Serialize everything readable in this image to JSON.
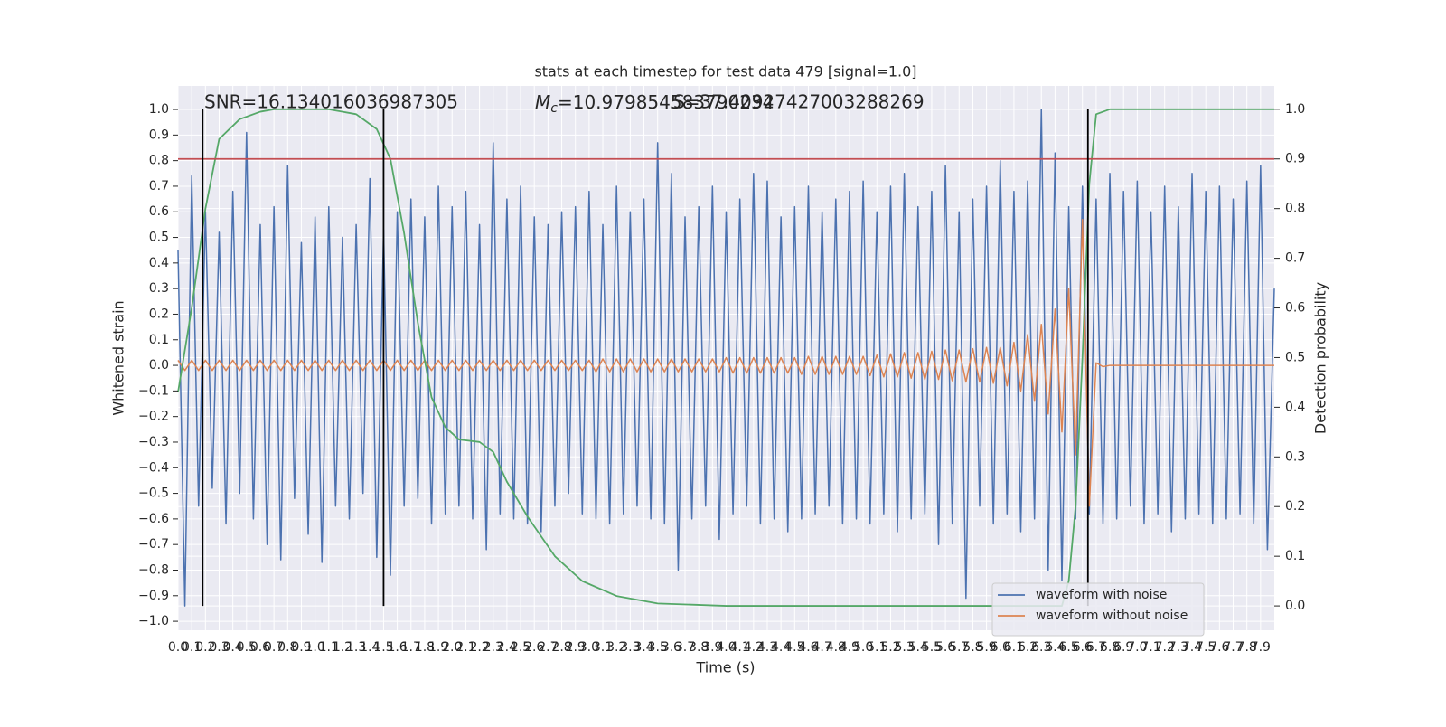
{
  "chart_data": {
    "type": "line",
    "title": "stats at each timestep for test data 479 [signal=1.0]",
    "x_label": "Time (s)",
    "y_label": "Whitened strain",
    "y2_label": "Detection probability",
    "annotations": {
      "snr": "SNR=16.134016036987305",
      "mc_symbol": "M",
      "mc_subscript": "c",
      "mc_value": "=10.979854583790234",
      "s": "S=37.40927427003288269"
    },
    "xlim": [
      0,
      8
    ],
    "ylim": [
      -1.035,
      1.092
    ],
    "y2lim": [
      -0.049,
      1.047
    ],
    "xticks": [
      {
        "value": 0,
        "label": "0.0"
      },
      0.1,
      0.2,
      0.3,
      0.4,
      0.5,
      0.6,
      0.7,
      0.8,
      0.9,
      {
        "value": 1,
        "label": "1.0"
      },
      1.1,
      1.2,
      1.3,
      1.4,
      1.5,
      1.6,
      1.7,
      1.8,
      1.9,
      {
        "value": 2,
        "label": "2.0"
      },
      2.1,
      2.2,
      2.3,
      2.4,
      2.5,
      2.6,
      2.7,
      2.8,
      2.9,
      {
        "value": 3,
        "label": "3.0"
      },
      3.1,
      3.2,
      3.3,
      3.4,
      3.5,
      3.6,
      3.7,
      3.8,
      3.9,
      {
        "value": 4,
        "label": "4.0"
      },
      4.1,
      4.2,
      4.3,
      4.4,
      4.5,
      4.6,
      4.7,
      4.8,
      4.9,
      {
        "value": 5,
        "label": "5.0"
      },
      5.1,
      5.2,
      5.3,
      5.4,
      5.5,
      5.6,
      5.7,
      5.8,
      5.9,
      {
        "value": 6,
        "label": "6.0"
      },
      6.1,
      6.2,
      6.3,
      6.4,
      6.5,
      6.6,
      6.7,
      6.8,
      6.9,
      {
        "value": 7,
        "label": "7.0"
      },
      7.1,
      7.2,
      7.3,
      7.4,
      7.5,
      7.6,
      7.7,
      7.8,
      7.9
    ],
    "yticks": [
      {
        "value": -1,
        "label": "−1.0"
      },
      {
        "value": -0.9,
        "label": "−0.9"
      },
      {
        "value": -0.8,
        "label": "−0.8"
      },
      {
        "value": -0.7,
        "label": "−0.7"
      },
      {
        "value": -0.6,
        "label": "−0.6"
      },
      {
        "value": -0.5,
        "label": "−0.5"
      },
      {
        "value": -0.4,
        "label": "−0.4"
      },
      {
        "value": -0.3,
        "label": "−0.3"
      },
      {
        "value": -0.2,
        "label": "−0.2"
      },
      {
        "value": -0.1,
        "label": "−0.1"
      },
      {
        "value": 0,
        "label": "0.0"
      },
      0.1,
      0.2,
      0.3,
      0.4,
      0.5,
      0.6,
      0.7,
      0.8,
      0.9,
      {
        "value": 1,
        "label": "1.0"
      }
    ],
    "y2ticks": [
      {
        "value": 0,
        "label": "0.0"
      },
      0.1,
      0.2,
      0.3,
      0.4,
      0.5,
      0.6,
      0.7,
      0.8,
      0.9,
      {
        "value": 1,
        "label": "1.0"
      }
    ],
    "grid": true,
    "x": [
      0,
      0.05,
      0.1,
      0.15,
      0.2,
      0.25,
      0.3,
      0.35,
      0.4,
      0.45,
      0.5,
      0.55,
      0.6,
      0.65,
      0.7,
      0.75,
      0.8,
      0.85,
      0.9,
      0.95,
      1,
      1.05,
      1.1,
      1.15,
      1.2,
      1.25,
      1.3,
      1.35,
      1.4,
      1.45,
      1.5,
      1.55,
      1.6,
      1.65,
      1.7,
      1.75,
      1.8,
      1.85,
      1.9,
      1.95,
      2,
      2.05,
      2.1,
      2.15,
      2.2,
      2.25,
      2.3,
      2.35,
      2.4,
      2.45,
      2.5,
      2.55,
      2.6,
      2.65,
      2.7,
      2.75,
      2.8,
      2.85,
      2.9,
      2.95,
      3,
      3.05,
      3.1,
      3.15,
      3.2,
      3.25,
      3.3,
      3.35,
      3.4,
      3.45,
      3.5,
      3.55,
      3.6,
      3.65,
      3.7,
      3.75,
      3.8,
      3.85,
      3.9,
      3.95,
      4,
      4.05,
      4.1,
      4.15,
      4.2,
      4.25,
      4.3,
      4.35,
      4.4,
      4.45,
      4.5,
      4.55,
      4.6,
      4.65,
      4.7,
      4.75,
      4.8,
      4.85,
      4.9,
      4.95,
      5,
      5.05,
      5.1,
      5.15,
      5.2,
      5.25,
      5.3,
      5.35,
      5.4,
      5.45,
      5.5,
      5.55,
      5.6,
      5.65,
      5.7,
      5.75,
      5.8,
      5.85,
      5.9,
      5.95,
      6,
      6.05,
      6.1,
      6.15,
      6.2,
      6.25,
      6.3,
      6.35,
      6.4,
      6.45,
      6.5,
      6.55,
      6.6,
      6.65,
      6.7,
      6.75,
      6.8,
      6.85,
      6.9,
      6.95,
      7,
      7.05,
      7.1,
      7.15,
      7.2,
      7.25,
      7.3,
      7.35,
      7.4,
      7.45,
      7.5,
      7.55,
      7.6,
      7.65,
      7.7,
      7.75,
      7.8,
      7.85,
      7.9,
      7.95,
      8
    ],
    "series": [
      {
        "name": "waveform with noise",
        "color": "#4c72b0",
        "values": [
          0.45,
          -0.94,
          0.74,
          -0.55,
          0.6,
          -0.48,
          0.52,
          -0.62,
          0.68,
          -0.5,
          0.91,
          -0.6,
          0.55,
          -0.7,
          0.62,
          -0.76,
          0.78,
          -0.52,
          0.48,
          -0.66,
          0.58,
          -0.77,
          0.62,
          -0.55,
          0.5,
          -0.6,
          0.55,
          -0.5,
          0.73,
          -0.75,
          0.53,
          -0.82,
          0.6,
          -0.55,
          0.65,
          -0.52,
          0.58,
          -0.62,
          0.7,
          -0.58,
          0.62,
          -0.55,
          0.68,
          -0.6,
          0.55,
          -0.72,
          0.87,
          -0.58,
          0.65,
          -0.6,
          0.7,
          -0.62,
          0.58,
          -0.65,
          0.55,
          -0.55,
          0.6,
          -0.5,
          0.62,
          -0.58,
          0.68,
          -0.6,
          0.55,
          -0.62,
          0.7,
          -0.58,
          0.6,
          -0.55,
          0.65,
          -0.6,
          0.87,
          -0.62,
          0.75,
          -0.8,
          0.58,
          -0.6,
          0.62,
          -0.55,
          0.7,
          -0.68,
          0.6,
          -0.58,
          0.65,
          -0.55,
          0.75,
          -0.62,
          0.72,
          -0.6,
          0.58,
          -0.65,
          0.62,
          -0.6,
          0.7,
          -0.58,
          0.6,
          -0.55,
          0.65,
          -0.62,
          0.68,
          -0.6,
          0.72,
          -0.62,
          0.6,
          -0.58,
          0.7,
          -0.65,
          0.75,
          -0.6,
          0.62,
          -0.58,
          0.68,
          -0.7,
          0.78,
          -0.62,
          0.6,
          -0.91,
          0.65,
          -0.55,
          0.7,
          -0.62,
          0.8,
          -0.58,
          0.68,
          -0.65,
          0.72,
          -0.6,
          1.0,
          -0.8,
          0.83,
          -0.84,
          0.62,
          -0.6,
          0.7,
          -0.58,
          0.65,
          -0.62,
          0.75,
          -0.6,
          0.68,
          -0.55,
          0.72,
          -0.62,
          0.6,
          -0.58,
          0.7,
          -0.65,
          0.62,
          -0.6,
          0.75,
          -0.58,
          0.68,
          -0.62,
          0.7,
          -0.6,
          0.65,
          -0.58,
          0.72,
          -0.62,
          0.78,
          -0.72,
          0.3
        ]
      },
      {
        "name": "waveform without noise",
        "color": "#dd8452",
        "values": [
          0.02,
          -0.02,
          0.02,
          -0.02,
          0.02,
          -0.02,
          0.02,
          -0.02,
          0.02,
          -0.02,
          0.02,
          -0.02,
          0.02,
          -0.02,
          0.02,
          -0.02,
          0.02,
          -0.02,
          0.02,
          -0.02,
          0.02,
          -0.02,
          0.02,
          -0.02,
          0.02,
          -0.02,
          0.02,
          -0.02,
          0.02,
          -0.02,
          0.02,
          -0.02,
          0.02,
          -0.02,
          0.02,
          -0.02,
          0.02,
          -0.02,
          0.02,
          -0.02,
          0.02,
          -0.02,
          0.02,
          -0.02,
          0.02,
          -0.02,
          0.02,
          -0.02,
          0.02,
          -0.02,
          0.02,
          -0.02,
          0.02,
          -0.02,
          0.02,
          -0.02,
          0.02,
          -0.02,
          0.02,
          -0.02,
          0.02,
          -0.025,
          0.025,
          -0.025,
          0.025,
          -0.025,
          0.025,
          -0.025,
          0.025,
          -0.025,
          0.025,
          -0.025,
          0.025,
          -0.025,
          0.025,
          -0.025,
          0.025,
          -0.025,
          0.025,
          -0.025,
          0.03,
          -0.03,
          0.03,
          -0.03,
          0.03,
          -0.03,
          0.03,
          -0.03,
          0.03,
          -0.03,
          0.03,
          -0.035,
          0.035,
          -0.035,
          0.035,
          -0.035,
          0.035,
          -0.035,
          0.035,
          -0.035,
          0.035,
          -0.04,
          0.04,
          -0.045,
          0.045,
          -0.045,
          0.05,
          -0.05,
          0.05,
          -0.055,
          0.055,
          -0.055,
          0.06,
          -0.06,
          0.06,
          -0.065,
          0.065,
          -0.065,
          0.07,
          -0.07,
          0.07,
          -0.08,
          0.09,
          -0.1,
          0.12,
          -0.14,
          0.16,
          -0.19,
          0.22,
          -0.26,
          0.3,
          -0.35,
          0.57,
          -0.55,
          0.01,
          -0.005,
          0,
          0,
          0,
          0,
          0,
          0,
          0,
          0,
          0,
          0,
          0,
          0,
          0,
          0,
          0,
          0,
          0,
          0,
          0,
          0,
          0,
          0,
          0,
          0,
          0
        ]
      }
    ],
    "probability": {
      "color": "#55a868",
      "axis": "y2",
      "x": [
        0,
        0.1,
        0.2,
        0.3,
        0.45,
        0.6,
        0.7,
        1.1,
        1.3,
        1.45,
        1.55,
        1.65,
        1.75,
        1.85,
        1.95,
        2.05,
        2.2,
        2.3,
        2.4,
        2.55,
        2.75,
        2.95,
        3.2,
        3.5,
        4,
        6.45,
        6.5,
        6.55,
        6.6,
        6.65,
        6.7,
        6.8,
        8
      ],
      "values": [
        0.43,
        0.6,
        0.8,
        0.94,
        0.98,
        0.995,
        1,
        1,
        0.99,
        0.96,
        0.9,
        0.75,
        0.57,
        0.42,
        0.36,
        0.335,
        0.33,
        0.31,
        0.25,
        0.18,
        0.1,
        0.05,
        0.02,
        0.005,
        0,
        0,
        0.05,
        0.2,
        0.5,
        0.85,
        0.99,
        1,
        1
      ]
    },
    "threshold": {
      "value": 0.9,
      "color": "#c44e52",
      "axis": "y2"
    },
    "vlines": [
      0.18,
      1.5,
      6.64
    ],
    "legend": "lower right"
  }
}
